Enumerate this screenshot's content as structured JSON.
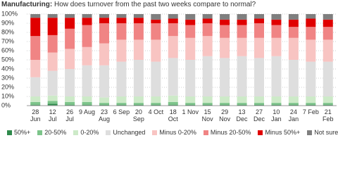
{
  "chart_data": {
    "type": "stacked_bar",
    "title": "Manufacturing:",
    "subtitle": "How does turnover from the past two weeks compare to normal?",
    "categories": [
      "28 Jun",
      "12 Jul",
      "26 Jul",
      "9 Aug",
      "23 Aug",
      "6 Sep",
      "20 Sep",
      "4 Oct",
      "18 Oct",
      "1 Nov",
      "15 Nov",
      "29 Nov",
      "13 Dec",
      "27 Dec",
      "10 Jan",
      "24 Jan",
      "7 Feb",
      "21 Feb"
    ],
    "series": [
      {
        "name": "50%+",
        "color": "#2f8a4c",
        "values": [
          1,
          2,
          1,
          1,
          1,
          1,
          1,
          1,
          1,
          1,
          1,
          1,
          1,
          1,
          1,
          1,
          1,
          1
        ]
      },
      {
        "name": "20-50%",
        "color": "#7cc48a",
        "values": [
          3,
          3,
          3,
          3,
          2,
          2,
          2,
          2,
          3,
          2,
          2,
          2,
          2,
          2,
          2,
          2,
          2,
          2
        ]
      },
      {
        "name": "0-20%",
        "color": "#cdeac8",
        "values": [
          6,
          6,
          6,
          6,
          6,
          7,
          7,
          7,
          7,
          7,
          7,
          7,
          7,
          7,
          7,
          7,
          7,
          7
        ]
      },
      {
        "name": "Unchanged",
        "color": "#dedede",
        "values": [
          21,
          27,
          30,
          34,
          35,
          38,
          40,
          38,
          41,
          40,
          44,
          42,
          44,
          42,
          44,
          40,
          38,
          38
        ]
      },
      {
        "name": "Minus 0-20%",
        "color": "#f8c4c2",
        "values": [
          19,
          20,
          22,
          20,
          24,
          24,
          22,
          24,
          24,
          24,
          22,
          22,
          20,
          22,
          20,
          24,
          24,
          24
        ]
      },
      {
        "name": "Minus 20-50%",
        "color": "#f08484",
        "values": [
          26,
          19,
          22,
          24,
          22,
          18,
          18,
          18,
          14,
          14,
          14,
          14,
          14,
          16,
          14,
          12,
          14,
          14
        ]
      },
      {
        "name": "Minus 50%+",
        "color": "#e00000",
        "values": [
          20,
          19,
          12,
          8,
          6,
          6,
          6,
          4,
          5,
          6,
          5,
          6,
          6,
          5,
          6,
          8,
          9,
          8
        ]
      },
      {
        "name": "Not sure",
        "color": "#7f7f7f",
        "values": [
          4,
          4,
          4,
          4,
          4,
          4,
          4,
          6,
          5,
          6,
          5,
          6,
          6,
          5,
          6,
          6,
          5,
          6
        ]
      }
    ],
    "ylim": [
      0,
      100
    ],
    "yticks": [
      {
        "value": 0,
        "label": "0%"
      },
      {
        "value": 10,
        "label": "10%"
      },
      {
        "value": 20,
        "label": "20%"
      },
      {
        "value": 30,
        "label": "30%"
      },
      {
        "value": 40,
        "label": "40%"
      },
      {
        "value": 50,
        "label": "50%"
      },
      {
        "value": 60,
        "label": "60%"
      },
      {
        "value": 70,
        "label": "70%"
      },
      {
        "value": 80,
        "label": "80%"
      },
      {
        "value": 90,
        "label": "90%"
      },
      {
        "value": 100,
        "label": "100%"
      }
    ],
    "grid": true
  }
}
